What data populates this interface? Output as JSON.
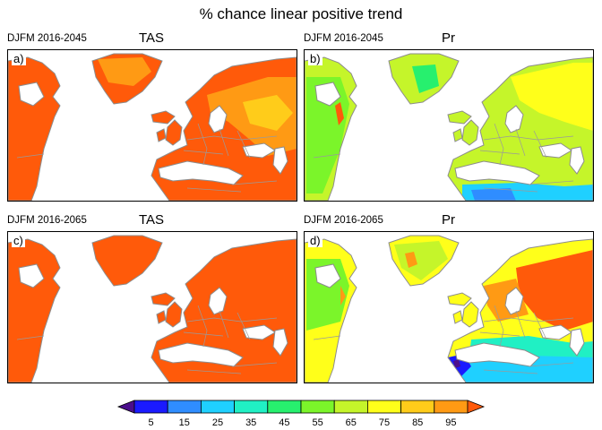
{
  "title": "% chance linear positive trend",
  "panels": [
    {
      "letter": "a)",
      "period": "DJFM 2016-2045",
      "variable": "TAS",
      "pattern": "tas2045"
    },
    {
      "letter": "b)",
      "period": "DJFM 2016-2045",
      "variable": "Pr",
      "pattern": "pr2045"
    },
    {
      "letter": "c)",
      "period": "DJFM 2016-2065",
      "variable": "TAS",
      "pattern": "tas2065"
    },
    {
      "letter": "d)",
      "period": "DJFM 2016-2065",
      "variable": "Pr",
      "pattern": "pr2065"
    }
  ],
  "colorbar": {
    "labels": [
      "5",
      "15",
      "25",
      "35",
      "45",
      "55",
      "65",
      "75",
      "85",
      "95"
    ],
    "colors": [
      "#4b0e8c",
      "#1a1aff",
      "#2f8dff",
      "#1fd0ff",
      "#20f0c4",
      "#27f06e",
      "#7bf52a",
      "#c5f52a",
      "#ffff1a",
      "#ffcc1a",
      "#ff9a14",
      "#ff5a0a"
    ]
  }
}
